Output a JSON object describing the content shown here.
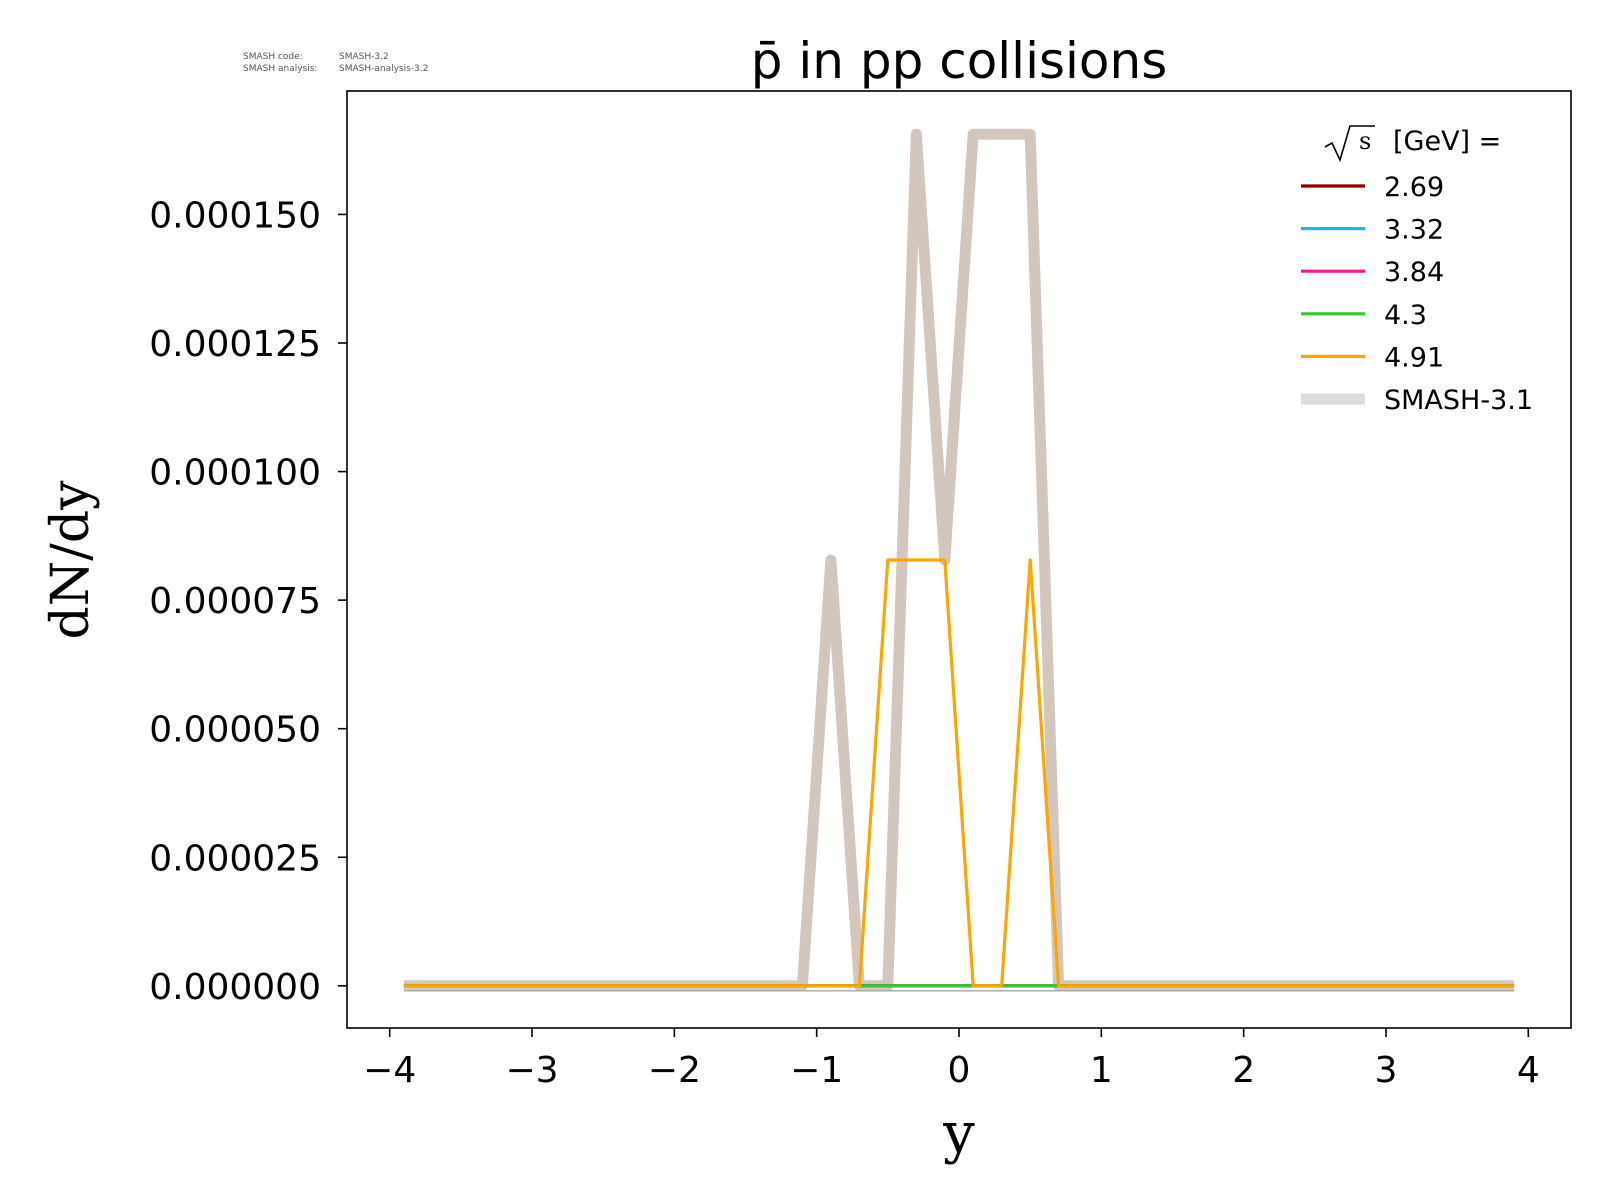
{
  "meta": {
    "code_label": "SMASH code:",
    "code_value": "SMASH-3.2",
    "analysis_label": "SMASH analysis:",
    "analysis_value": "SMASH-analysis-3.2"
  },
  "chart_data": {
    "type": "line",
    "title": "p̄ in pp collisions",
    "xlabel": "y",
    "ylabel": "dN/dy",
    "xlim": [
      -4.3,
      4.3
    ],
    "ylim": [
      -8.2e-06,
      0.000174
    ],
    "xticks": [
      -4,
      -3,
      -2,
      -1,
      0,
      1,
      2,
      3,
      4
    ],
    "xtick_labels": [
      "−4",
      "−3",
      "−2",
      "−1",
      "0",
      "1",
      "2",
      "3",
      "4"
    ],
    "yticks": [
      0,
      2.5e-05,
      5e-05,
      7.5e-05,
      0.0001,
      0.000125,
      0.00015
    ],
    "ytick_labels": [
      "0.000000",
      "0.000025",
      "0.000050",
      "0.000075",
      "0.000100",
      "0.000125",
      "0.000150"
    ],
    "grid": false,
    "legend": {
      "placement": "top-right",
      "title_sqrt": "s",
      "title_rest": "[GeV] ="
    },
    "series": [
      {
        "name": "SMASH-3.1",
        "color": "#d3c7bd",
        "legend_color": "#dcdcdc",
        "width": "thick",
        "x": [
          -3.9,
          -3.7,
          -3.5,
          -3.3,
          -3.1,
          -2.9,
          -2.7,
          -2.5,
          -2.3,
          -2.1,
          -1.9,
          -1.7,
          -1.5,
          -1.3,
          -1.1,
          -0.9,
          -0.7,
          -0.5,
          -0.3,
          -0.1,
          0.1,
          0.3,
          0.5,
          0.7,
          0.9,
          1.1,
          1.3,
          1.5,
          1.7,
          1.9,
          2.1,
          2.3,
          2.5,
          2.7,
          2.9,
          3.1,
          3.3,
          3.5,
          3.7,
          3.9
        ],
        "y": [
          0,
          0,
          0,
          0,
          0,
          0,
          0,
          0,
          0,
          0,
          0,
          0,
          0,
          0,
          0,
          8.28e-05,
          0,
          0,
          0.0001656,
          8.28e-05,
          0.0001656,
          0.0001656,
          0.0001656,
          0,
          0,
          0,
          0,
          0,
          0,
          0,
          0,
          0,
          0,
          0,
          0,
          0,
          0,
          0,
          0,
          0
        ]
      },
      {
        "name": "2.69",
        "color": "#8b0000",
        "width": "thin",
        "x": [
          -3.9,
          3.9
        ],
        "y": [
          0,
          0
        ]
      },
      {
        "name": "3.32",
        "color": "#1eb4ee",
        "width": "thin",
        "x": [
          -3.9,
          3.9
        ],
        "y": [
          0,
          0
        ]
      },
      {
        "name": "3.84",
        "color": "#ff1493",
        "width": "thin",
        "x": [
          -3.9,
          3.9
        ],
        "y": [
          0,
          0
        ]
      },
      {
        "name": "4.3",
        "color": "#32c832",
        "width": "thin",
        "x": [
          -3.9,
          3.9
        ],
        "y": [
          0,
          0
        ]
      },
      {
        "name": "4.91",
        "color": "#ffa500",
        "width": "thin",
        "x": [
          -3.9,
          -3.7,
          -3.5,
          -3.3,
          -3.1,
          -2.9,
          -2.7,
          -2.5,
          -2.3,
          -2.1,
          -1.9,
          -1.7,
          -1.5,
          -1.3,
          -1.1,
          -0.9,
          -0.7,
          -0.5,
          -0.3,
          -0.1,
          0.1,
          0.3,
          0.5,
          0.7,
          0.9,
          1.1,
          1.3,
          1.5,
          1.7,
          1.9,
          2.1,
          2.3,
          2.5,
          2.7,
          2.9,
          3.1,
          3.3,
          3.5,
          3.7,
          3.9
        ],
        "y": [
          0,
          0,
          0,
          0,
          0,
          0,
          0,
          0,
          0,
          0,
          0,
          0,
          0,
          0,
          0,
          0,
          0,
          8.28e-05,
          8.28e-05,
          8.28e-05,
          0,
          0,
          8.28e-05,
          0,
          0,
          0,
          0,
          0,
          0,
          0,
          0,
          0,
          0,
          0,
          0,
          0,
          0,
          0,
          0,
          0
        ]
      }
    ]
  }
}
